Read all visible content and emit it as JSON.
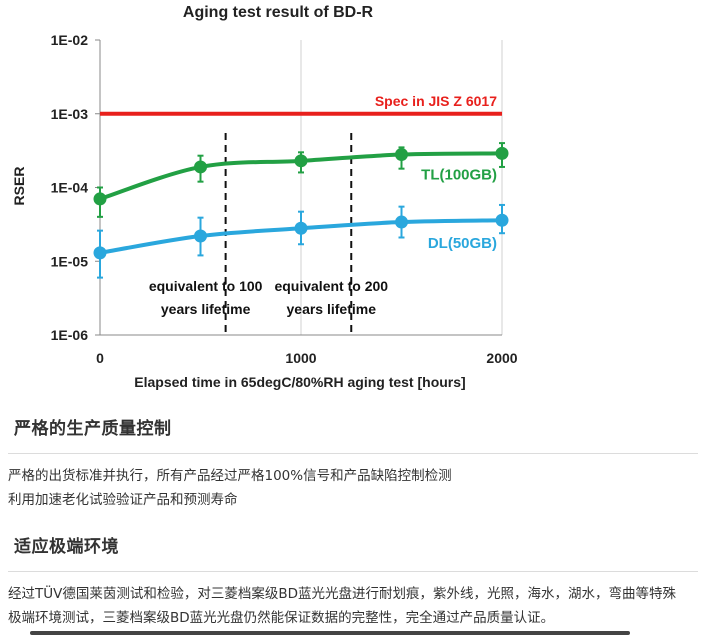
{
  "chart_data": {
    "type": "line",
    "title": "Aging test result of BD-R",
    "xlabel": "Elapsed time in 65degC/80%RH aging test [hours]",
    "ylabel": "RSER",
    "xlim": [
      0,
      2000
    ],
    "ylim": [
      1e-06,
      0.01
    ],
    "y_scale": "log",
    "x_ticks": [
      "0",
      "1000",
      "2000"
    ],
    "y_ticks": [
      "1E-02",
      "1E-03",
      "1E-04",
      "1E-05",
      "1E-06"
    ],
    "grid": "vertical",
    "spec_line": {
      "label": "Spec in JIS Z 6017",
      "value": 0.001,
      "color": "#e8201c"
    },
    "series": [
      {
        "name": "TL(100GB)",
        "color": "#22a044",
        "x": [
          0,
          500,
          1000,
          1500,
          2000
        ],
        "y": [
          7e-05,
          0.00019,
          0.00023,
          0.00028,
          0.00029
        ],
        "err_low": [
          4e-05,
          0.00012,
          0.00016,
          0.00018,
          0.00019
        ],
        "err_high": [
          0.0001,
          0.00027,
          0.0003,
          0.00035,
          0.0004
        ]
      },
      {
        "name": "DL(50GB)",
        "color": "#2aa7dd",
        "x": [
          0,
          500,
          1000,
          1500,
          2000
        ],
        "y": [
          1.3e-05,
          2.2e-05,
          2.8e-05,
          3.4e-05,
          3.6e-05
        ],
        "err_low": [
          6e-06,
          1.2e-05,
          1.7e-05,
          2.1e-05,
          2.4e-05
        ],
        "err_high": [
          2.6e-05,
          3.9e-05,
          4.7e-05,
          5.5e-05,
          5.8e-05
        ]
      }
    ],
    "annotations": [
      {
        "x": 625,
        "lines": [
          "equivalent to 100",
          "years lifetime"
        ]
      },
      {
        "x": 1250,
        "lines": [
          "equivalent to 200",
          "years lifetime"
        ]
      }
    ]
  },
  "sections": [
    {
      "title": "严格的生产质量控制",
      "lines": [
        "严格的出货标准并执行，所有产品经过严格100%信号和产品缺陷控制检测",
        "利用加速老化试验验证产品和预测寿命"
      ]
    },
    {
      "title": "适应极端环境",
      "lines": [
        "经过TÜV德国莱茵测试和检验，对三菱档案级BD蓝光光盘进行耐划痕，紫外线，光照，海水，湖水，弯曲等特殊",
        "极端环境测试，三菱档案级BD蓝光光盘仍然能保证数据的完整性，完全通过产品质量认证。"
      ]
    }
  ]
}
